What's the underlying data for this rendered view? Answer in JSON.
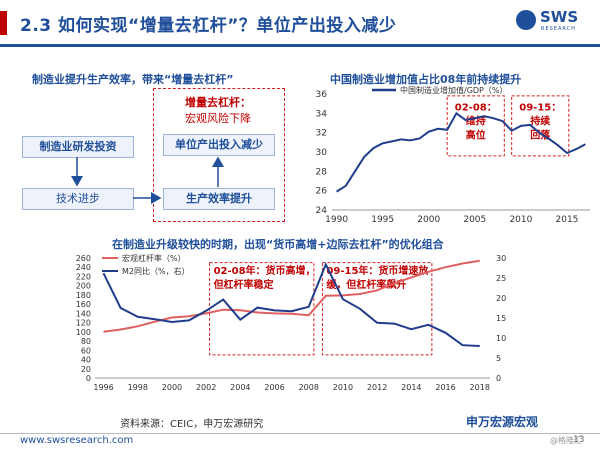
{
  "header": {
    "title": "2.3 如何实现“增量去杠杆”？单位产出投入减少",
    "logo_text": "SWS",
    "logo_sub": "RESEARCH"
  },
  "diagram": {
    "title": "制造业提升生产效率，带来“增量去杠杆”",
    "box_rd": "制造业研发投资",
    "box_tech": "技术进步",
    "box_unit": "单位产出投入减少",
    "box_eff": "生产效率提升",
    "note_title": "增量去杠杆：",
    "note_body": "宏观风险下降"
  },
  "chart_data": [
    {
      "type": "line",
      "title": "中国制造业增加值占比08年前持续提升",
      "series": [
        {
          "name": "中国制造业增加值/GDP（%）",
          "color": "#1f3d8a",
          "x": [
            1990,
            1991,
            1992,
            1993,
            1994,
            1995,
            1996,
            1997,
            1998,
            1999,
            2000,
            2001,
            2002,
            2003,
            2004,
            2005,
            2006,
            2007,
            2008,
            2009,
            2010,
            2011,
            2012,
            2013,
            2014,
            2015,
            2016,
            2017
          ],
          "values": [
            25.9,
            26.5,
            28.0,
            29.5,
            30.4,
            30.9,
            31.1,
            31.3,
            31.2,
            31.4,
            32.1,
            32.4,
            32.3,
            34.0,
            33.3,
            33.5,
            33.7,
            33.5,
            33.2,
            32.2,
            32.7,
            32.8,
            32.0,
            31.4,
            30.7,
            29.9,
            30.3,
            30.8
          ]
        }
      ],
      "xticks": [
        1990,
        1995,
        2000,
        2005,
        2010,
        2015
      ],
      "yticks": [
        24,
        26,
        28,
        30,
        32,
        34,
        36
      ],
      "ylim": [
        24,
        36
      ],
      "annotations": [
        {
          "label_1": "02-08：",
          "label_2": "维持",
          "label_3": "高位"
        },
        {
          "label_1": "09-15：",
          "label_2": "持续",
          "label_3": "回落"
        }
      ]
    },
    {
      "type": "line",
      "title": "在制造业升级较快的时期，出现“货币高增+边际去杠杆”的优化组合",
      "x": [
        1996,
        1997,
        1998,
        1999,
        2000,
        2001,
        2002,
        2003,
        2004,
        2005,
        2006,
        2007,
        2008,
        2009,
        2010,
        2011,
        2012,
        2013,
        2014,
        2015,
        2016,
        2017,
        2018
      ],
      "series": [
        {
          "name": "宏观杠杆率（%）",
          "color": "#e06060",
          "axis": "left",
          "values": [
            100,
            105,
            112,
            122,
            131,
            134,
            140,
            148,
            147,
            142,
            140,
            139,
            136,
            178,
            179,
            182,
            190,
            205,
            218,
            230,
            240,
            248,
            254
          ]
        },
        {
          "name": "M2同比（%，右）",
          "color": "#1f3d8a",
          "axis": "right",
          "values": [
            26.2,
            17.5,
            15.3,
            14.7,
            14.0,
            14.4,
            16.8,
            19.6,
            14.6,
            17.6,
            16.9,
            16.7,
            17.8,
            28.4,
            19.7,
            17.3,
            13.8,
            13.6,
            12.2,
            13.3,
            11.3,
            8.2,
            8.0
          ]
        }
      ],
      "xticks": [
        1996,
        1998,
        2000,
        2002,
        2004,
        2006,
        2008,
        2010,
        2012,
        2014,
        2016,
        2018
      ],
      "ylim_left": [
        0,
        260
      ],
      "yticks_left": [
        0,
        20,
        40,
        60,
        80,
        100,
        120,
        140,
        160,
        180,
        200,
        220,
        240,
        260
      ],
      "ylim_right": [
        0,
        30
      ],
      "yticks_right": [
        0,
        5,
        10,
        15,
        20,
        25,
        30
      ],
      "annotations": [
        {
          "label_1": "02-08年：货币高增，",
          "label_2": "但杠杆率稳定"
        },
        {
          "label_1": "09-15年：货币增速放",
          "label_2": "缓，但杠杆率飙升"
        }
      ]
    }
  ],
  "footer": {
    "source": "资料来源：CEIC，申万宏源研究",
    "url": "www.swsresearch.com",
    "page": "13",
    "watermark": "申万宏源宏观",
    "watermark_sub": "@格隆汇"
  }
}
